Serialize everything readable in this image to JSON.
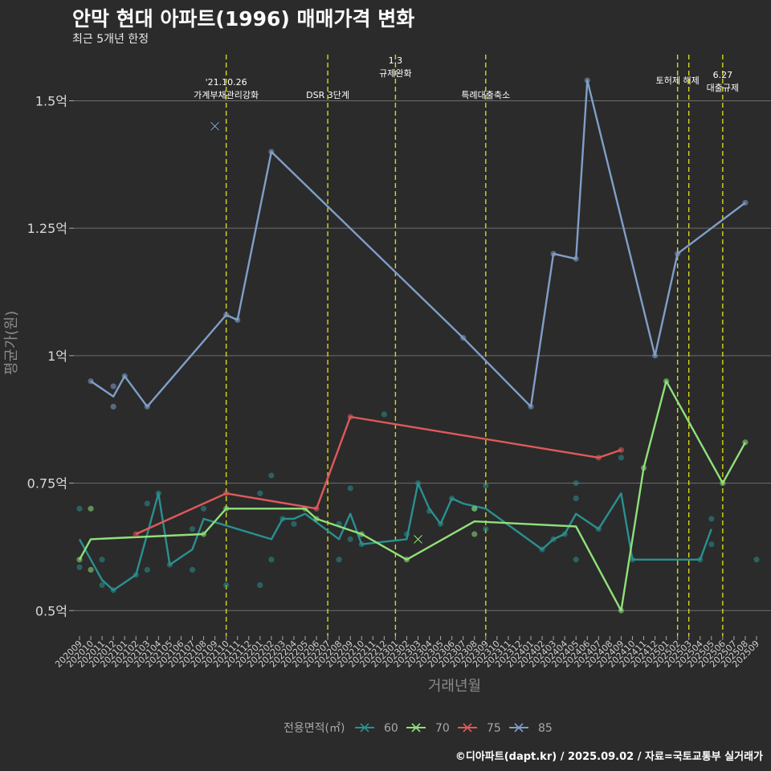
{
  "header": {
    "title": "안막 현대 아파트(1996) 매매가격 변화",
    "subtitle": "최근 5개년 한정"
  },
  "footer": {
    "credit": "©디아파트(dapt.kr) / 2025.09.02 / 자료=국토교통부 실거래가"
  },
  "chart_data": {
    "type": "line",
    "title": "안막 현대 아파트(1996) 매매가격 변화",
    "xlabel": "거래년월",
    "ylabel": "평균가(원)",
    "ylim": [
      0.45,
      1.6
    ],
    "yticks": [
      {
        "value": 0.5,
        "label": "0.5억"
      },
      {
        "value": 0.75,
        "label": "0.75억"
      },
      {
        "value": 1.0,
        "label": "1억"
      },
      {
        "value": 1.25,
        "label": "1.25억"
      },
      {
        "value": 1.5,
        "label": "1.5억"
      }
    ],
    "xticks": [
      "202009",
      "202010",
      "202011",
      "202012",
      "202101",
      "202102",
      "202103",
      "202104",
      "202105",
      "202106",
      "202107",
      "202108",
      "202109",
      "202110",
      "202111",
      "202112",
      "202201",
      "202202",
      "202203",
      "202204",
      "202205",
      "202206",
      "202207",
      "202208",
      "202209",
      "202210",
      "202211",
      "202212",
      "202301",
      "202302",
      "202303",
      "202304",
      "202305",
      "202306",
      "202307",
      "202308",
      "202309",
      "202310",
      "202311",
      "202312",
      "202401",
      "202402",
      "202403",
      "202404",
      "202405",
      "202406",
      "202407",
      "202408",
      "202409",
      "202410",
      "202411",
      "202412",
      "202501",
      "202502",
      "202503",
      "202504",
      "202505",
      "202506",
      "202507",
      "202508",
      "202509"
    ],
    "events": [
      {
        "month": "202110",
        "label": [
          "'21.10.26",
          "가계부채관리강화"
        ]
      },
      {
        "month": "202207",
        "label": [
          "DSR 3단계"
        ]
      },
      {
        "month": "202301",
        "label": [
          "1.3",
          "규제완화"
        ]
      },
      {
        "month": "202309",
        "label": [
          "특례대출축소"
        ]
      },
      {
        "month": "202502",
        "label": [
          "토허제 해제"
        ]
      },
      {
        "month": "202503",
        "label": []
      },
      {
        "month": "202506",
        "label": [
          "6.27",
          "대출규제"
        ]
      }
    ],
    "legend": {
      "title": "전용면적(㎡)",
      "position": "bottom"
    },
    "series": [
      {
        "name": "60",
        "color": "#2a9090",
        "line": [
          [
            "202009",
            0.64
          ],
          [
            "202011",
            0.56
          ],
          [
            "202012",
            0.54
          ],
          [
            "202102",
            0.57
          ],
          [
            "202104",
            0.73
          ],
          [
            "202105",
            0.59
          ],
          [
            "202107",
            0.62
          ],
          [
            "202108",
            0.68
          ],
          [
            "202202",
            0.64
          ],
          [
            "202203",
            0.68
          ],
          [
            "202204",
            0.68
          ],
          [
            "202205",
            0.69
          ],
          [
            "202208",
            0.64
          ],
          [
            "202209",
            0.69
          ],
          [
            "202210",
            0.63
          ],
          [
            "202302",
            0.64
          ],
          [
            "202303",
            0.75
          ],
          [
            "202304",
            0.7
          ],
          [
            "202305",
            0.67
          ],
          [
            "202306",
            0.72
          ],
          [
            "202307",
            0.71
          ],
          [
            "202309",
            0.7
          ],
          [
            "202402",
            0.62
          ],
          [
            "202403",
            0.64
          ],
          [
            "202404",
            0.65
          ],
          [
            "202405",
            0.69
          ],
          [
            "202407",
            0.66
          ],
          [
            "202409",
            0.73
          ],
          [
            "202410",
            0.6
          ],
          [
            "202504",
            0.6
          ],
          [
            "202505",
            0.66
          ]
        ],
        "points": [
          [
            "202009",
            0.7
          ],
          [
            "202009",
            0.585
          ],
          [
            "202011",
            0.55
          ],
          [
            "202011",
            0.6
          ],
          [
            "202012",
            0.54
          ],
          [
            "202102",
            0.57
          ],
          [
            "202103",
            0.71
          ],
          [
            "202103",
            0.58
          ],
          [
            "202104",
            0.73
          ],
          [
            "202105",
            0.59
          ],
          [
            "202107",
            0.66
          ],
          [
            "202107",
            0.58
          ],
          [
            "202108",
            0.7
          ],
          [
            "202110",
            0.55
          ],
          [
            "202201",
            0.73
          ],
          [
            "202201",
            0.55
          ],
          [
            "202202",
            0.765
          ],
          [
            "202202",
            0.6
          ],
          [
            "202203",
            0.68
          ],
          [
            "202204",
            0.67
          ],
          [
            "202208",
            0.67
          ],
          [
            "202208",
            0.6
          ],
          [
            "202209",
            0.74
          ],
          [
            "202209",
            0.64
          ],
          [
            "202210",
            0.63
          ],
          [
            "202212",
            0.885
          ],
          [
            "202302",
            0.65
          ],
          [
            "202303",
            0.75
          ],
          [
            "202304",
            0.695
          ],
          [
            "202305",
            0.67
          ],
          [
            "202306",
            0.72
          ],
          [
            "202308",
            0.7
          ],
          [
            "202309",
            0.745
          ],
          [
            "202309",
            0.66
          ],
          [
            "202402",
            0.62
          ],
          [
            "202403",
            0.64
          ],
          [
            "202404",
            0.65
          ],
          [
            "202405",
            0.75
          ],
          [
            "202405",
            0.72
          ],
          [
            "202405",
            0.6
          ],
          [
            "202407",
            0.66
          ],
          [
            "202409",
            0.8
          ],
          [
            "202410",
            0.6
          ],
          [
            "202504",
            0.6
          ],
          [
            "202505",
            0.68
          ],
          [
            "202505",
            0.63
          ],
          [
            "202509",
            0.6
          ]
        ]
      },
      {
        "name": "70",
        "color": "#90e07a",
        "line": [
          [
            "202009",
            0.6
          ],
          [
            "202010",
            0.64
          ],
          [
            "202108",
            0.65
          ],
          [
            "202110",
            0.7
          ],
          [
            "202205",
            0.7
          ],
          [
            "202206",
            0.68
          ],
          [
            "202210",
            0.65
          ],
          [
            "202302",
            0.6
          ],
          [
            "202308",
            0.675
          ],
          [
            "202405",
            0.665
          ],
          [
            "202409",
            0.5
          ],
          [
            "202411",
            0.78
          ],
          [
            "202501",
            0.95
          ],
          [
            "202506",
            0.75
          ],
          [
            "202508",
            0.83
          ]
        ],
        "points": [
          [
            "202009",
            0.6
          ],
          [
            "202010",
            0.7
          ],
          [
            "202010",
            0.58
          ],
          [
            "202108",
            0.65
          ],
          [
            "202110",
            0.7
          ],
          [
            "202205",
            0.7
          ],
          [
            "202206",
            0.68
          ],
          [
            "202210",
            0.65
          ],
          [
            "202302",
            0.6
          ],
          [
            "202308",
            0.7
          ],
          [
            "202308",
            0.65
          ],
          [
            "202409",
            0.5
          ],
          [
            "202411",
            0.78
          ],
          [
            "202501",
            0.95
          ],
          [
            "202506",
            0.75
          ],
          [
            "202508",
            0.83
          ]
        ],
        "crosses": [
          [
            "202303",
            0.64
          ]
        ]
      },
      {
        "name": "75",
        "color": "#e05a5a",
        "line": [
          [
            "202102",
            0.65
          ],
          [
            "202110",
            0.73
          ],
          [
            "202206",
            0.7
          ],
          [
            "202209",
            0.88
          ],
          [
            "202407",
            0.8
          ],
          [
            "202409",
            0.815
          ]
        ],
        "points": [
          [
            "202102",
            0.65
          ],
          [
            "202110",
            0.73
          ],
          [
            "202206",
            0.7
          ],
          [
            "202209",
            0.88
          ],
          [
            "202407",
            0.8
          ],
          [
            "202409",
            0.815
          ]
        ]
      },
      {
        "name": "85",
        "color": "#7f9fc8",
        "line": [
          [
            "202010",
            0.95
          ],
          [
            "202012",
            0.92
          ],
          [
            "202101",
            0.96
          ],
          [
            "202103",
            0.9
          ],
          [
            "202110",
            1.08
          ],
          [
            "202111",
            1.07
          ],
          [
            "202202",
            1.4
          ],
          [
            "202307",
            1.035
          ],
          [
            "202401",
            0.9
          ],
          [
            "202403",
            1.2
          ],
          [
            "202405",
            1.19
          ],
          [
            "202406",
            1.54
          ],
          [
            "202412",
            1.0
          ],
          [
            "202502",
            1.2
          ],
          [
            "202508",
            1.3
          ]
        ],
        "points": [
          [
            "202010",
            0.95
          ],
          [
            "202012",
            0.94
          ],
          [
            "202012",
            0.9
          ],
          [
            "202101",
            0.96
          ],
          [
            "202103",
            0.9
          ],
          [
            "202110",
            1.08
          ],
          [
            "202111",
            1.07
          ],
          [
            "202202",
            1.4
          ],
          [
            "202307",
            1.035
          ],
          [
            "202401",
            0.9
          ],
          [
            "202403",
            1.2
          ],
          [
            "202405",
            1.19
          ],
          [
            "202406",
            1.54
          ],
          [
            "202412",
            1.0
          ],
          [
            "202502",
            1.2
          ],
          [
            "202508",
            1.3
          ]
        ],
        "crosses": [
          [
            "202109",
            1.45
          ]
        ]
      }
    ]
  }
}
